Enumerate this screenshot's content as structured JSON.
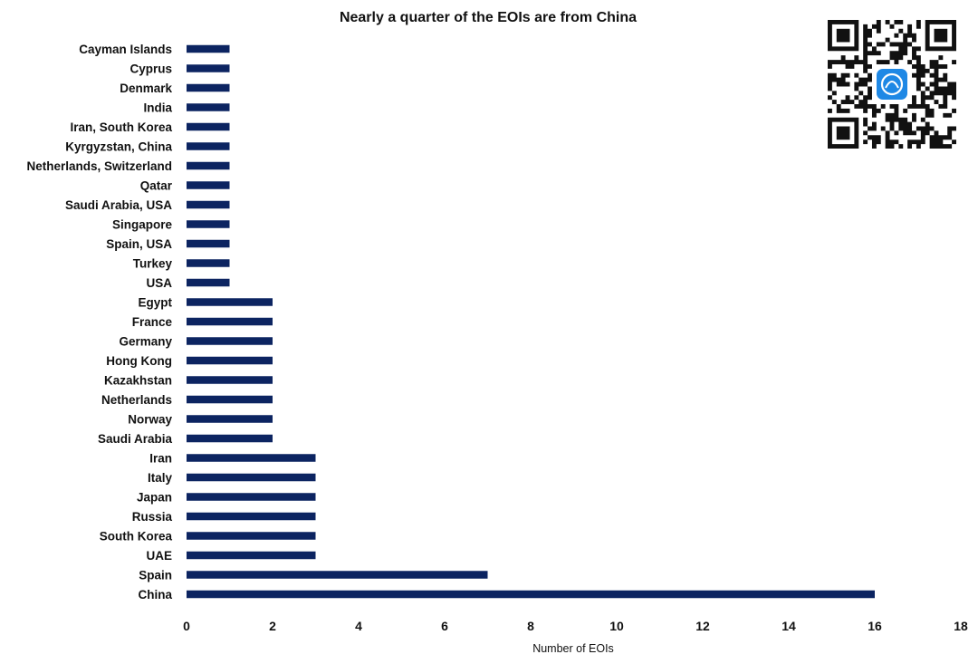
{
  "chart_data": {
    "type": "bar",
    "orientation": "horizontal",
    "title": "Nearly a quarter of the EOIs are from China",
    "xlabel": "Number of EOIs",
    "ylabel": "",
    "xlim": [
      0,
      18
    ],
    "xticks": [
      "0",
      "2",
      "4",
      "6",
      "8",
      "10",
      "12",
      "14",
      "16",
      "18"
    ],
    "grid": false,
    "legend": "none",
    "bar_color": "#0c2461",
    "categories": [
      "Cayman Islands",
      "Cyprus",
      "Denmark",
      "India",
      "Iran, South Korea",
      "Kyrgyzstan, China",
      "Netherlands, Switzerland",
      "Qatar",
      "Saudi Arabia, USA",
      "Singapore",
      "Spain, USA",
      "Turkey",
      "USA",
      "Egypt",
      "France",
      "Germany",
      "Hong Kong",
      "Kazakhstan",
      "Netherlands",
      "Norway",
      "Saudi Arabia",
      "Iran",
      "Italy",
      "Japan",
      "Russia",
      "South Korea",
      "UAE",
      "Spain",
      "China"
    ],
    "values": [
      1,
      1,
      1,
      1,
      1,
      1,
      1,
      1,
      1,
      1,
      1,
      1,
      1,
      2,
      2,
      2,
      2,
      2,
      2,
      2,
      2,
      3,
      3,
      3,
      3,
      3,
      3,
      7,
      16
    ]
  },
  "qr_code": {
    "icon": "qr-code-icon",
    "logo_icon": "app-logo-icon",
    "logo_color": "#1e88e5"
  }
}
